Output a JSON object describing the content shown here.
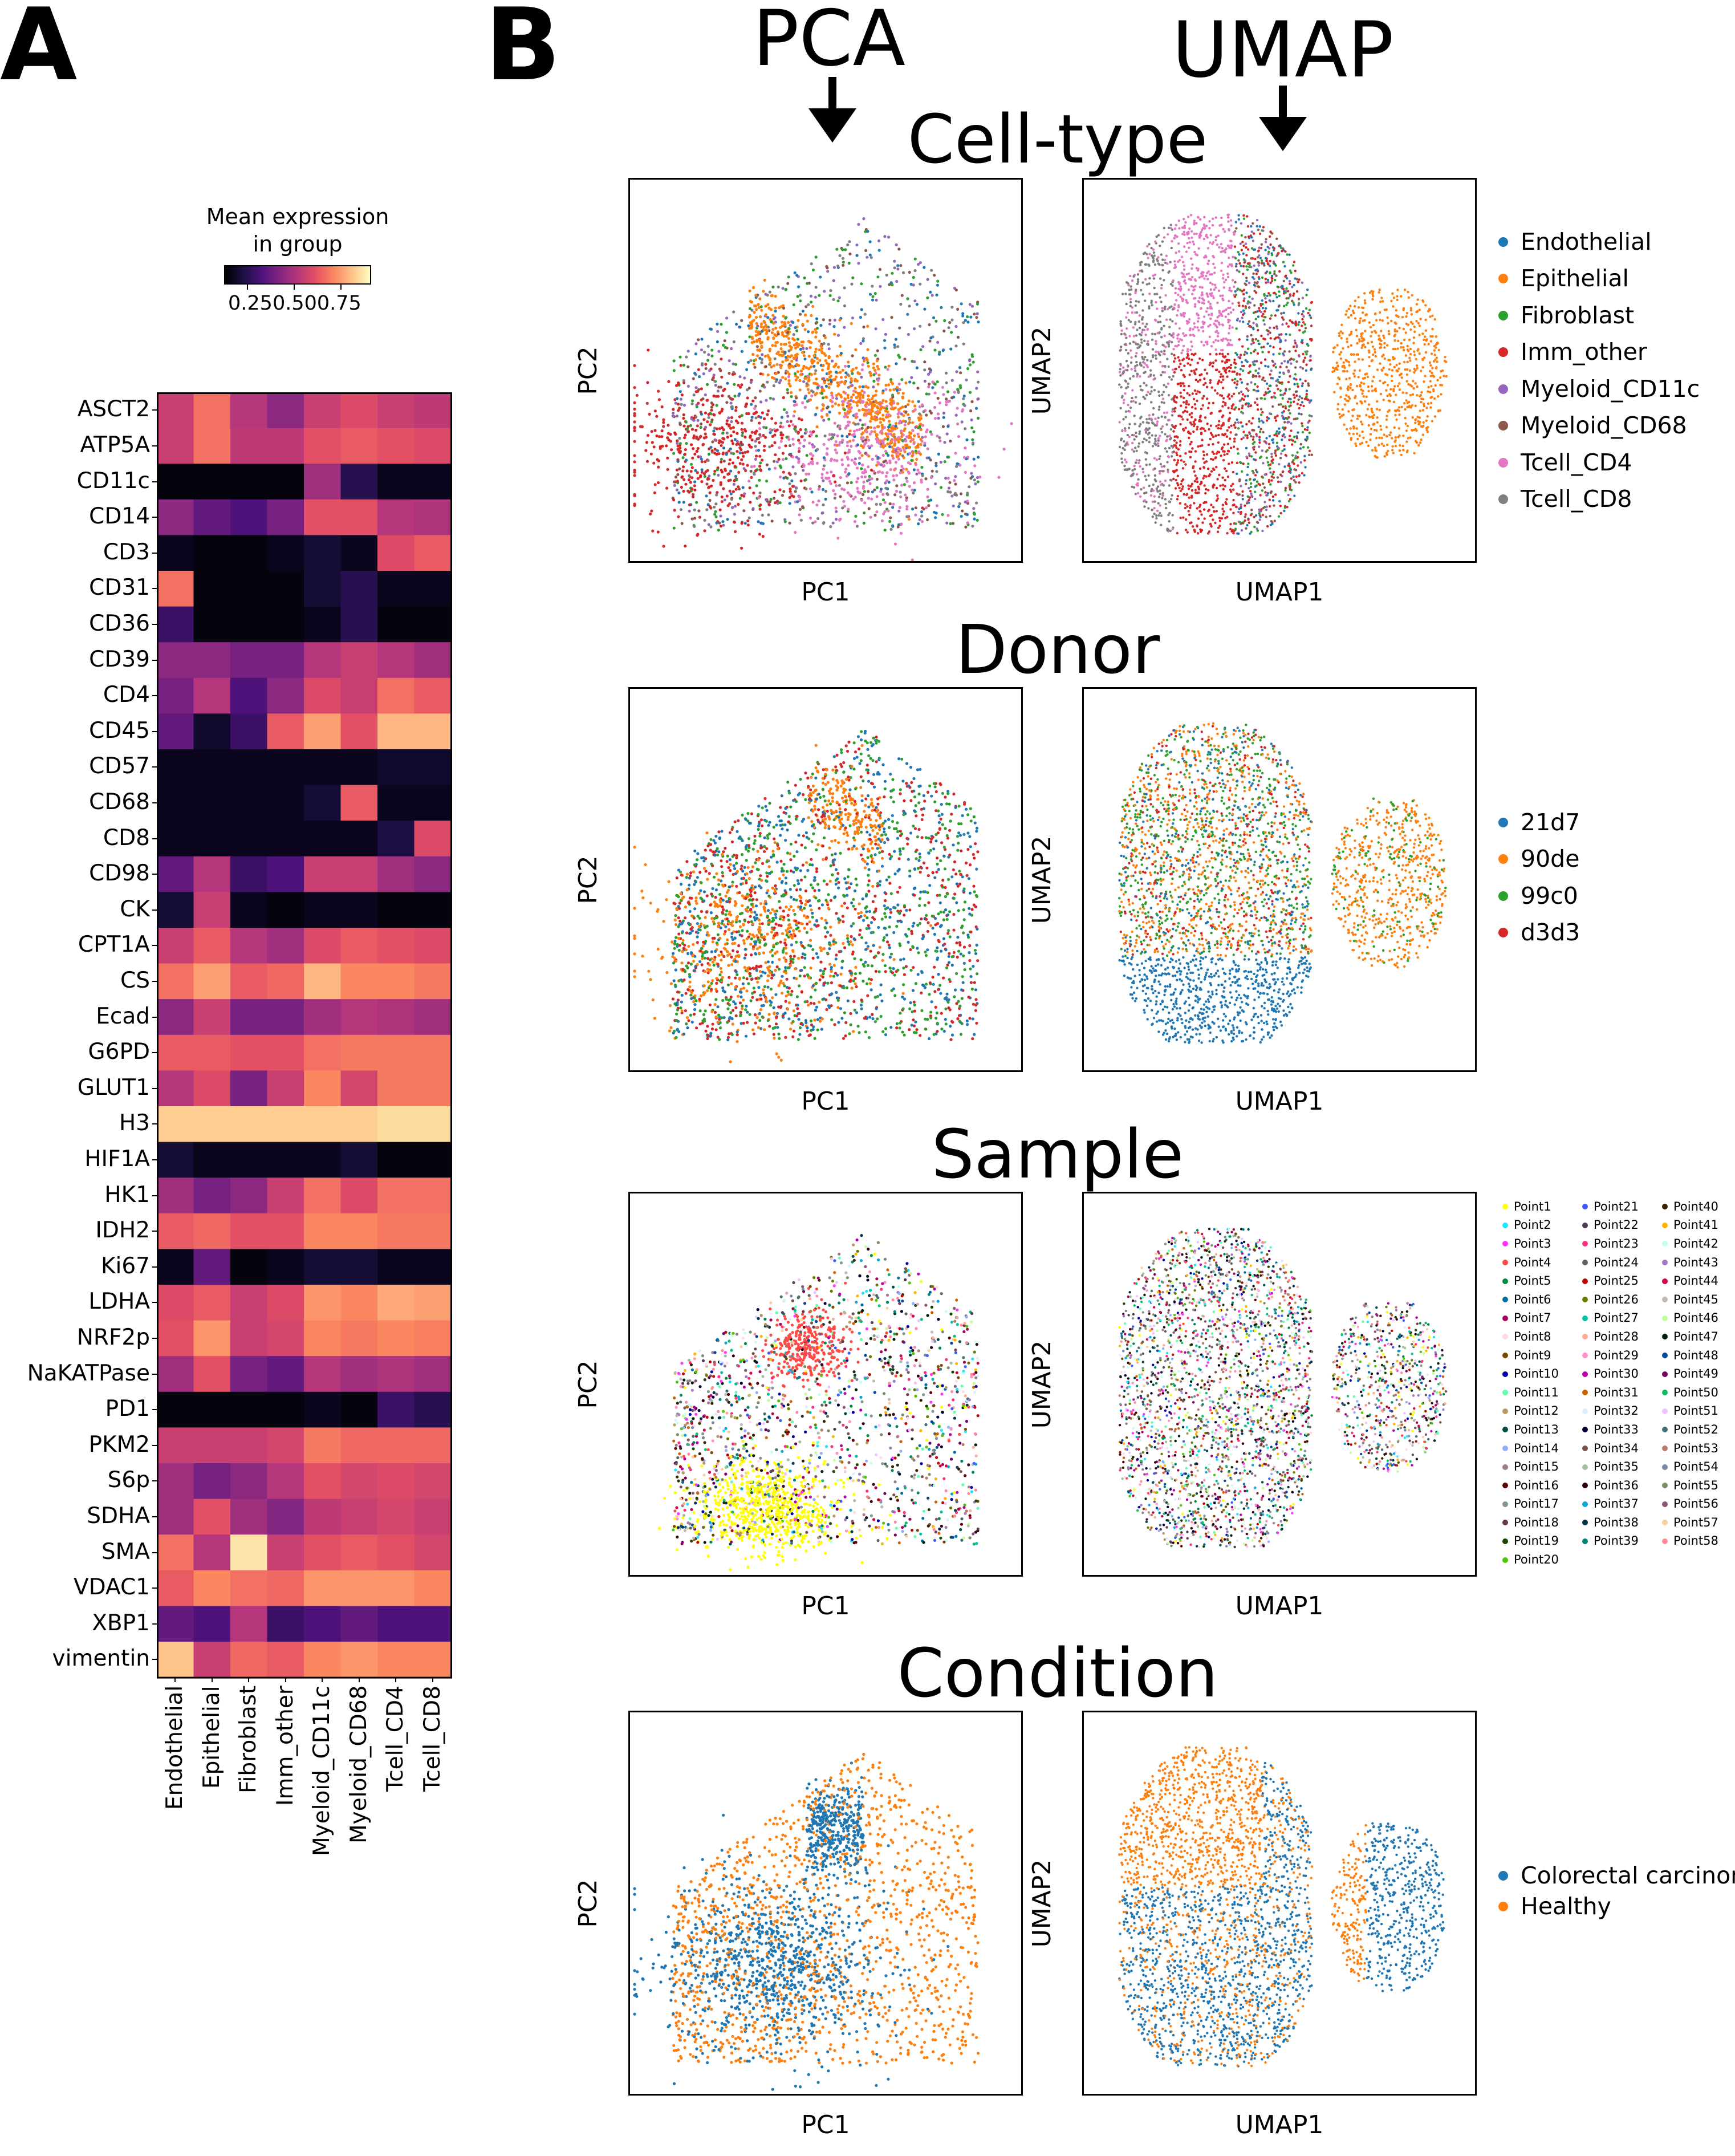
{
  "panels": {
    "a": "A",
    "b": "B"
  },
  "column_headers": {
    "pca": "PCA",
    "umap": "UMAP"
  },
  "chart_data": [
    {
      "type": "heatmap",
      "title": "",
      "colorbar_title": "Mean expression\nin group",
      "colorbar_ticks": [
        "0.25",
        "0.50",
        "0.75"
      ],
      "colormap": "magma",
      "rows": [
        "ASCT2",
        "ATP5A",
        "CD11c",
        "CD14",
        "CD3",
        "CD31",
        "CD36",
        "CD39",
        "CD4",
        "CD45",
        "CD57",
        "CD68",
        "CD8",
        "CD98",
        "CK",
        "CPT1A",
        "CS",
        "Ecad",
        "G6PD",
        "GLUT1",
        "H3",
        "HIF1A",
        "HK1",
        "IDH2",
        "Ki67",
        "LDHA",
        "NRF2p",
        "NaKATPase",
        "PD1",
        "PKM2",
        "S6p",
        "SDHA",
        "SMA",
        "VDAC1",
        "XBP1",
        "vimentin"
      ],
      "columns": [
        "Endothelial",
        "Epithelial",
        "Fibroblast",
        "Imm_other",
        "Myeloid_CD11c",
        "Myeloid_CD68",
        "Tcell_CD4",
        "Tcell_CD8"
      ],
      "values": [
        [
          0.55,
          0.7,
          0.5,
          0.4,
          0.55,
          0.6,
          0.55,
          0.52
        ],
        [
          0.55,
          0.7,
          0.52,
          0.52,
          0.62,
          0.65,
          0.62,
          0.6
        ],
        [
          0.02,
          0.02,
          0.02,
          0.02,
          0.45,
          0.15,
          0.05,
          0.05
        ],
        [
          0.4,
          0.3,
          0.25,
          0.35,
          0.62,
          0.62,
          0.5,
          0.48
        ],
        [
          0.05,
          0.02,
          0.02,
          0.05,
          0.1,
          0.05,
          0.6,
          0.65
        ],
        [
          0.7,
          0.02,
          0.02,
          0.02,
          0.1,
          0.15,
          0.05,
          0.05
        ],
        [
          0.2,
          0.02,
          0.02,
          0.02,
          0.05,
          0.15,
          0.02,
          0.02
        ],
        [
          0.4,
          0.4,
          0.35,
          0.35,
          0.5,
          0.55,
          0.5,
          0.45
        ],
        [
          0.35,
          0.5,
          0.25,
          0.4,
          0.6,
          0.55,
          0.7,
          0.65
        ],
        [
          0.3,
          0.08,
          0.2,
          0.65,
          0.8,
          0.62,
          0.85,
          0.85
        ],
        [
          0.05,
          0.05,
          0.05,
          0.05,
          0.05,
          0.05,
          0.08,
          0.08
        ],
        [
          0.05,
          0.05,
          0.05,
          0.05,
          0.1,
          0.65,
          0.05,
          0.05
        ],
        [
          0.05,
          0.05,
          0.05,
          0.05,
          0.05,
          0.05,
          0.12,
          0.6
        ],
        [
          0.3,
          0.5,
          0.2,
          0.25,
          0.55,
          0.55,
          0.45,
          0.4
        ],
        [
          0.1,
          0.55,
          0.05,
          0.02,
          0.05,
          0.05,
          0.02,
          0.02
        ],
        [
          0.55,
          0.65,
          0.5,
          0.45,
          0.6,
          0.65,
          0.62,
          0.6
        ],
        [
          0.7,
          0.8,
          0.65,
          0.68,
          0.85,
          0.75,
          0.75,
          0.72
        ],
        [
          0.4,
          0.55,
          0.35,
          0.35,
          0.45,
          0.5,
          0.48,
          0.45
        ],
        [
          0.65,
          0.65,
          0.62,
          0.62,
          0.7,
          0.72,
          0.72,
          0.72
        ],
        [
          0.5,
          0.6,
          0.35,
          0.55,
          0.75,
          0.58,
          0.72,
          0.72
        ],
        [
          0.9,
          0.9,
          0.9,
          0.9,
          0.9,
          0.9,
          0.93,
          0.93
        ],
        [
          0.1,
          0.05,
          0.05,
          0.05,
          0.05,
          0.1,
          0.02,
          0.02
        ],
        [
          0.45,
          0.35,
          0.4,
          0.55,
          0.7,
          0.6,
          0.7,
          0.7
        ],
        [
          0.65,
          0.68,
          0.62,
          0.62,
          0.75,
          0.75,
          0.72,
          0.72
        ],
        [
          0.05,
          0.3,
          0.02,
          0.05,
          0.1,
          0.1,
          0.05,
          0.05
        ],
        [
          0.6,
          0.65,
          0.55,
          0.6,
          0.78,
          0.75,
          0.82,
          0.8
        ],
        [
          0.62,
          0.78,
          0.55,
          0.58,
          0.75,
          0.72,
          0.75,
          0.73
        ],
        [
          0.45,
          0.62,
          0.35,
          0.3,
          0.5,
          0.45,
          0.48,
          0.45
        ],
        [
          0.02,
          0.02,
          0.02,
          0.02,
          0.05,
          0.02,
          0.2,
          0.15
        ],
        [
          0.55,
          0.55,
          0.55,
          0.58,
          0.72,
          0.68,
          0.68,
          0.68
        ],
        [
          0.45,
          0.35,
          0.4,
          0.5,
          0.62,
          0.58,
          0.6,
          0.58
        ],
        [
          0.45,
          0.62,
          0.45,
          0.38,
          0.52,
          0.55,
          0.58,
          0.55
        ],
        [
          0.7,
          0.5,
          0.95,
          0.55,
          0.62,
          0.65,
          0.62,
          0.58
        ],
        [
          0.65,
          0.75,
          0.7,
          0.68,
          0.78,
          0.78,
          0.78,
          0.75
        ],
        [
          0.3,
          0.25,
          0.5,
          0.2,
          0.25,
          0.3,
          0.25,
          0.25
        ],
        [
          0.88,
          0.55,
          0.68,
          0.65,
          0.75,
          0.78,
          0.75,
          0.75
        ]
      ]
    },
    {
      "type": "scatter",
      "section": "Cell-type",
      "embedding": "PCA",
      "xlabel": "PC1",
      "ylabel": "PC2",
      "legend": [
        "Endothelial",
        "Epithelial",
        "Fibroblast",
        "Imm_other",
        "Myeloid_CD11c",
        "Myeloid_CD68",
        "Tcell_CD4",
        "Tcell_CD8"
      ],
      "legend_colors": [
        "#1f77b4",
        "#ff7f0e",
        "#2ca02c",
        "#d62728",
        "#9467bd",
        "#8c564b",
        "#e377c2",
        "#7f7f7f"
      ]
    },
    {
      "type": "scatter",
      "section": "Cell-type",
      "embedding": "UMAP",
      "xlabel": "UMAP1",
      "ylabel": "UMAP2"
    },
    {
      "type": "scatter",
      "section": "Donor",
      "embedding": "PCA",
      "xlabel": "PC1",
      "ylabel": "PC2",
      "legend": [
        "21d7",
        "90de",
        "99c0",
        "d3d3"
      ],
      "legend_colors": [
        "#1f77b4",
        "#ff7f0e",
        "#2ca02c",
        "#d62728"
      ]
    },
    {
      "type": "scatter",
      "section": "Donor",
      "embedding": "UMAP",
      "xlabel": "UMAP1",
      "ylabel": "UMAP2"
    },
    {
      "type": "scatter",
      "section": "Sample",
      "embedding": "PCA",
      "xlabel": "PC1",
      "ylabel": "PC2",
      "legend": [
        "Point1",
        "Point2",
        "Point3",
        "Point4",
        "Point5",
        "Point6",
        "Point7",
        "Point8",
        "Point9",
        "Point10",
        "Point11",
        "Point12",
        "Point13",
        "Point14",
        "Point15",
        "Point16",
        "Point17",
        "Point18",
        "Point19",
        "Point20",
        "Point21",
        "Point22",
        "Point23",
        "Point24",
        "Point25",
        "Point26",
        "Point27",
        "Point28",
        "Point29",
        "Point30",
        "Point31",
        "Point32",
        "Point33",
        "Point34",
        "Point35",
        "Point36",
        "Point37",
        "Point38",
        "Point39",
        "Point40",
        "Point41",
        "Point42",
        "Point43",
        "Point44",
        "Point45",
        "Point46",
        "Point47",
        "Point48",
        "Point49",
        "Point50",
        "Point51",
        "Point52",
        "Point53",
        "Point54",
        "Point55",
        "Point56",
        "Point57",
        "Point58"
      ],
      "legend_colors": [
        "#ffff00",
        "#1ce6ff",
        "#ff34ff",
        "#ff4a46",
        "#008941",
        "#006fa6",
        "#a30059",
        "#ffdbe5",
        "#7a4900",
        "#0000a6",
        "#63ffac",
        "#b79762",
        "#004d43",
        "#8fb0ff",
        "#997d87",
        "#5a0007",
        "#809693",
        "#6a3a4c",
        "#1b4400",
        "#4fc601",
        "#3b5dff",
        "#4a3b53",
        "#ff2f80",
        "#61615a",
        "#ba0900",
        "#6b7900",
        "#00c2a0",
        "#ffaa92",
        "#ff90c9",
        "#b903aa",
        "#d16100",
        "#ddefff",
        "#000035",
        "#7b4f4b",
        "#a1c299",
        "#300018",
        "#0aa6d8",
        "#013349",
        "#00846f",
        "#372101",
        "#ffb500",
        "#c2ffed",
        "#a079bf",
        "#cc0744",
        "#c0b9b2",
        "#c2ff99",
        "#001e09",
        "#00489c",
        "#6f0062",
        "#0cbd66",
        "#eec3ff",
        "#456d75",
        "#b77b68",
        "#7a87a1",
        "#788d66",
        "#885578",
        "#fad09f",
        "#ff8a9a"
      ]
    },
    {
      "type": "scatter",
      "section": "Sample",
      "embedding": "UMAP",
      "xlabel": "UMAP1",
      "ylabel": "UMAP2"
    },
    {
      "type": "scatter",
      "section": "Condition",
      "embedding": "PCA",
      "xlabel": "PC1",
      "ylabel": "PC2",
      "legend": [
        "Colorectal carcinoma",
        "Healthy"
      ],
      "legend_colors": [
        "#1f77b4",
        "#ff7f0e"
      ]
    },
    {
      "type": "scatter",
      "section": "Condition",
      "embedding": "UMAP",
      "xlabel": "UMAP1",
      "ylabel": "UMAP2"
    }
  ],
  "sections": {
    "celltype": "Cell-type",
    "donor": "Donor",
    "sample": "Sample",
    "condition": "Condition"
  }
}
